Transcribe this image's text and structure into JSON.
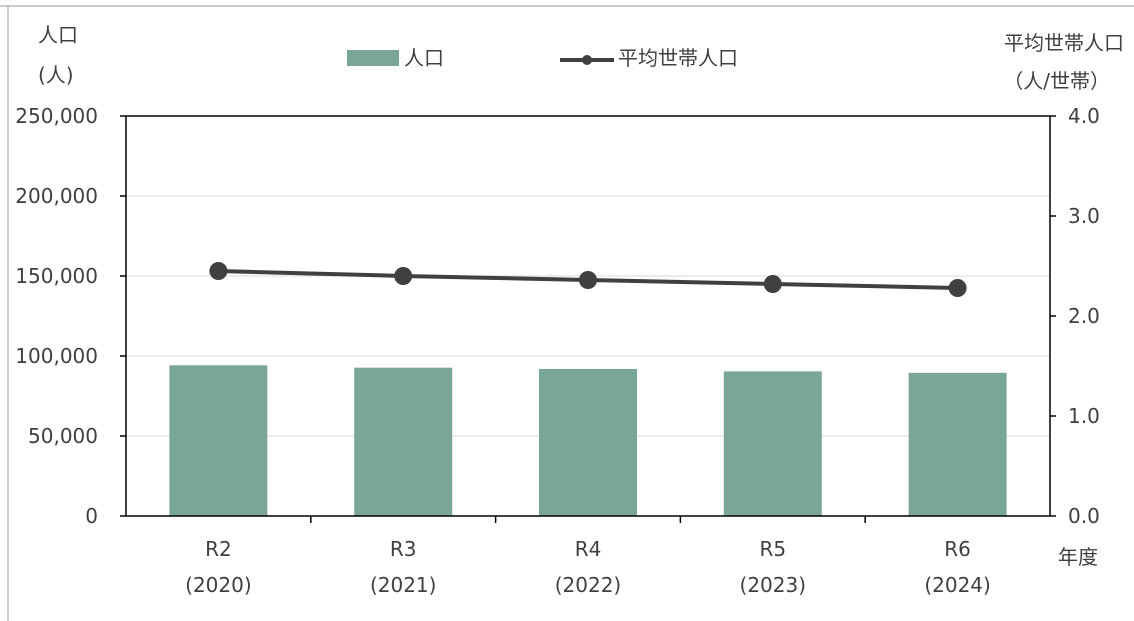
{
  "chart_data": {
    "type": "bar",
    "categories": [
      "R2",
      "R3",
      "R4",
      "R5",
      "R6"
    ],
    "category_sublabels": [
      "(2020)",
      "(2021)",
      "(2022)",
      "(2023)",
      "(2024)"
    ],
    "xlabel": "年度",
    "y_left": {
      "label_line1": "人口",
      "label_line2": "(人)",
      "ylim": [
        0,
        250000
      ],
      "ticks": [
        0,
        50000,
        100000,
        150000,
        200000,
        250000
      ],
      "tick_labels": [
        "0",
        "50,000",
        "100,000",
        "150,000",
        "200,000",
        "250,000"
      ]
    },
    "y_right": {
      "label_line1": "平均世帯人口",
      "label_line2": "（人/世帯）",
      "ylim": [
        0,
        4.0
      ],
      "ticks": [
        0,
        1,
        2,
        3,
        4
      ],
      "tick_labels": [
        "0.0",
        "1.0",
        "2.0",
        "3.0",
        "4.0"
      ]
    },
    "series": [
      {
        "name": "人口",
        "type": "bar",
        "axis": "left",
        "color": "#7aa699",
        "values": [
          94200,
          92700,
          91900,
          90400,
          89500
        ]
      },
      {
        "name": "平均世帯人口",
        "type": "line",
        "axis": "right",
        "color": "#404040",
        "values": [
          2.45,
          2.4,
          2.36,
          2.32,
          2.28
        ]
      }
    ],
    "grid": true,
    "legend_placement": "top-center"
  }
}
